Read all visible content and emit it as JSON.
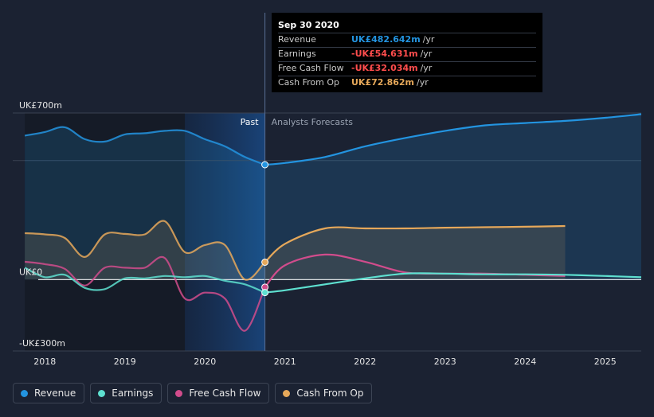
{
  "chart_data": {
    "type": "line",
    "y_unit": "UK£m",
    "y_labels": [
      {
        "label": "UK£700m",
        "value": 700
      },
      {
        "label": "UK£0",
        "value": 0
      },
      {
        "label": "-UK£300m",
        "value": -300
      }
    ],
    "ylim": [
      -300,
      700
    ],
    "xlim": [
      2017.6,
      2025.45
    ],
    "x_ticks": [
      {
        "label": "2018",
        "value": 2018
      },
      {
        "label": "2019",
        "value": 2019
      },
      {
        "label": "2020",
        "value": 2020
      },
      {
        "label": "2021",
        "value": 2021
      },
      {
        "label": "2022",
        "value": 2022
      },
      {
        "label": "2023",
        "value": 2023
      },
      {
        "label": "2024",
        "value": 2024
      },
      {
        "label": "2025",
        "value": 2025
      }
    ],
    "past_label": "Past",
    "forecast_label": "Analysts Forecasts",
    "highlight_range": [
      2019.75,
      2020.75
    ],
    "divider_x": 2020.75,
    "series": [
      {
        "name": "Revenue",
        "color": "#2394e0",
        "fill": true,
        "past": [
          [
            2017.75,
            605
          ],
          [
            2018,
            620
          ],
          [
            2018.25,
            640
          ],
          [
            2018.5,
            590
          ],
          [
            2018.75,
            580
          ],
          [
            2019,
            610
          ],
          [
            2019.25,
            615
          ],
          [
            2019.5,
            625
          ],
          [
            2019.75,
            625
          ],
          [
            2020,
            590
          ],
          [
            2020.25,
            560
          ],
          [
            2020.5,
            515
          ],
          [
            2020.75,
            482.6
          ]
        ],
        "forecast": [
          [
            2020.75,
            482.6
          ],
          [
            2021,
            490
          ],
          [
            2021.5,
            515
          ],
          [
            2022,
            560
          ],
          [
            2022.5,
            595
          ],
          [
            2023,
            625
          ],
          [
            2023.5,
            648
          ],
          [
            2024,
            658
          ],
          [
            2024.5,
            667
          ],
          [
            2025,
            680
          ],
          [
            2025.45,
            695
          ]
        ]
      },
      {
        "name": "Earnings",
        "color": "#5ee0d0",
        "fill": false,
        "past": [
          [
            2017.75,
            50
          ],
          [
            2018,
            10
          ],
          [
            2018.25,
            20
          ],
          [
            2018.5,
            -35
          ],
          [
            2018.75,
            -40
          ],
          [
            2019,
            5
          ],
          [
            2019.25,
            5
          ],
          [
            2019.5,
            15
          ],
          [
            2019.75,
            10
          ],
          [
            2020,
            15
          ],
          [
            2020.25,
            -5
          ],
          [
            2020.5,
            -20
          ],
          [
            2020.75,
            -54.6
          ]
        ],
        "forecast": [
          [
            2020.75,
            -54.6
          ],
          [
            2021,
            -45
          ],
          [
            2021.5,
            -20
          ],
          [
            2022,
            5
          ],
          [
            2022.5,
            25
          ],
          [
            2023,
            25
          ],
          [
            2023.5,
            22
          ],
          [
            2024,
            22
          ],
          [
            2024.5,
            20
          ],
          [
            2025,
            15
          ],
          [
            2025.45,
            10
          ]
        ]
      },
      {
        "name": "Free Cash Flow",
        "color": "#d14c8c",
        "fill": false,
        "past": [
          [
            2017.75,
            75
          ],
          [
            2018,
            65
          ],
          [
            2018.25,
            45
          ],
          [
            2018.5,
            -25
          ],
          [
            2018.75,
            50
          ],
          [
            2019,
            50
          ],
          [
            2019.25,
            50
          ],
          [
            2019.5,
            90
          ],
          [
            2019.75,
            -80
          ],
          [
            2020,
            -55
          ],
          [
            2020.25,
            -80
          ],
          [
            2020.5,
            -215
          ],
          [
            2020.75,
            -32
          ]
        ],
        "forecast": [
          [
            2020.75,
            -32
          ],
          [
            2021,
            60
          ],
          [
            2021.5,
            105
          ],
          [
            2022,
            75
          ],
          [
            2022.5,
            30
          ],
          [
            2023,
            25
          ],
          [
            2023.5,
            25
          ],
          [
            2024,
            20
          ],
          [
            2024.5,
            15
          ]
        ]
      },
      {
        "name": "Cash From Op",
        "color": "#e6a85a",
        "fill": true,
        "past": [
          [
            2017.75,
            195
          ],
          [
            2018,
            190
          ],
          [
            2018.25,
            175
          ],
          [
            2018.5,
            95
          ],
          [
            2018.75,
            190
          ],
          [
            2019,
            192
          ],
          [
            2019.25,
            190
          ],
          [
            2019.5,
            245
          ],
          [
            2019.75,
            115
          ],
          [
            2020,
            145
          ],
          [
            2020.25,
            145
          ],
          [
            2020.5,
            0
          ],
          [
            2020.75,
            72.9
          ]
        ],
        "forecast": [
          [
            2020.75,
            72.9
          ],
          [
            2021,
            150
          ],
          [
            2021.5,
            215
          ],
          [
            2022,
            215
          ],
          [
            2022.5,
            215
          ],
          [
            2023,
            218
          ],
          [
            2023.5,
            220
          ],
          [
            2024,
            222
          ],
          [
            2024.5,
            225
          ]
        ]
      }
    ],
    "tooltip": {
      "date": "Sep 30 2020",
      "unit": "/yr",
      "rows": [
        {
          "label": "Revenue",
          "value": "UK£482.642m",
          "color": "#2394e0"
        },
        {
          "label": "Earnings",
          "value": "-UK£54.631m",
          "color": "#ff4d4d"
        },
        {
          "label": "Free Cash Flow",
          "value": "-UK£32.034m",
          "color": "#ff4d4d"
        },
        {
          "label": "Cash From Op",
          "value": "UK£72.862m",
          "color": "#e6a85a"
        }
      ]
    }
  },
  "legend": [
    {
      "label": "Revenue",
      "color": "#2394e0"
    },
    {
      "label": "Earnings",
      "color": "#5ee0d0"
    },
    {
      "label": "Free Cash Flow",
      "color": "#d14c8c"
    },
    {
      "label": "Cash From Op",
      "color": "#e6a85a"
    }
  ]
}
